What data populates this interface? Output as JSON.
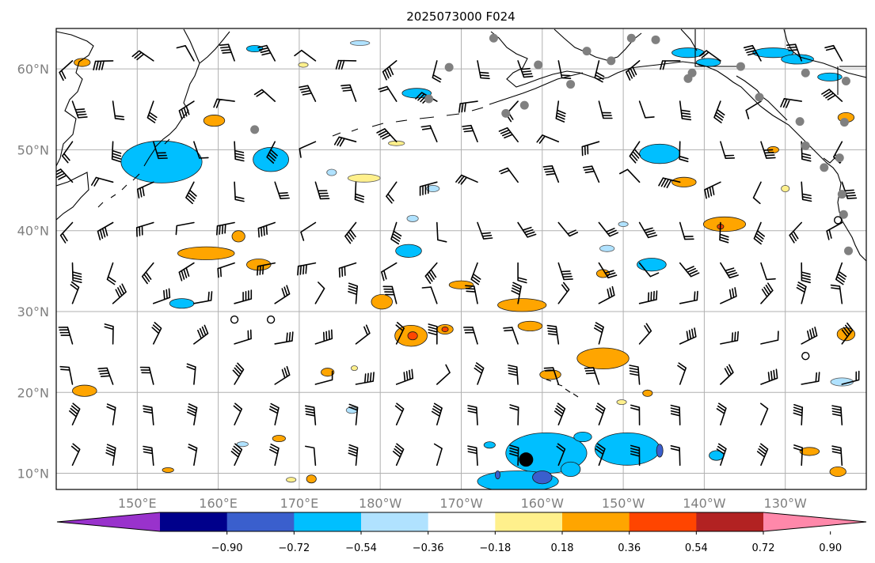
{
  "title": "2025073000 F024",
  "map": {
    "lon_min": 140,
    "lon_max": 240,
    "lat_min": 8,
    "lat_max": 65,
    "lon_ticks": [
      150,
      160,
      170,
      180,
      190,
      200,
      210,
      220,
      230
    ],
    "lat_ticks": [
      10,
      20,
      30,
      40,
      50,
      60
    ],
    "lon_labels": [
      "150°E",
      "160°E",
      "170°E",
      "180°W",
      "170°W",
      "160°W",
      "150°W",
      "140°W",
      "130°W"
    ],
    "lat_labels": [
      "10°N",
      "20°N",
      "30°N",
      "40°N",
      "50°N",
      "60°N"
    ],
    "grid": true
  },
  "colorbar": {
    "levels": [
      "−0.90",
      "−0.72",
      "−0.54",
      "−0.36",
      "−0.18",
      "0.18",
      "0.36",
      "0.54",
      "0.72",
      "0.90"
    ],
    "colors": [
      "#9932cc",
      "#00008b",
      "#3a5fcd",
      "#00bfff",
      "#b0e2ff",
      "#ffffff",
      "#fff08c",
      "#ffa500",
      "#ff4500",
      "#b22222",
      "#ff88aa"
    ],
    "extend": "both"
  },
  "colors": {
    "positive_1": "#fff08c",
    "positive_2": "#ffa500",
    "positive_3": "#ff4500",
    "negative_1": "#b0e2ff",
    "negative_2": "#00bfff",
    "negative_3": "#3a5fcd",
    "station": "#808080"
  },
  "anomalies": [
    {
      "lon": 153,
      "lat": 48.5,
      "rx": 5,
      "ry": 2.6,
      "level": -2
    },
    {
      "lon": 166.5,
      "lat": 48.8,
      "rx": 2.2,
      "ry": 1.5,
      "level": -2
    },
    {
      "lon": 214.5,
      "lat": 49.5,
      "rx": 2.5,
      "ry": 1.2,
      "level": -2
    },
    {
      "lon": 200.5,
      "lat": 12.5,
      "rx": 5,
      "ry": 2.5,
      "level": -2
    },
    {
      "lon": 210.5,
      "lat": 13,
      "rx": 4,
      "ry": 2,
      "level": -2
    },
    {
      "lon": 197,
      "lat": 9,
      "rx": 5,
      "ry": 1.3,
      "level": -2
    },
    {
      "lon": 203.5,
      "lat": 10.5,
      "rx": 1.2,
      "ry": 0.9,
      "level": -2
    },
    {
      "lon": 213.5,
      "lat": 35.8,
      "rx": 1.8,
      "ry": 0.8,
      "level": -2
    },
    {
      "lon": 228.5,
      "lat": 62,
      "rx": 2.5,
      "ry": 0.6,
      "level": -2
    },
    {
      "lon": 231.5,
      "lat": 61.2,
      "rx": 2,
      "ry": 0.6,
      "level": -2
    },
    {
      "lon": 235.5,
      "lat": 59,
      "rx": 1.5,
      "ry": 0.5,
      "level": -2
    },
    {
      "lon": 218,
      "lat": 62,
      "rx": 2,
      "ry": 0.6,
      "level": -2
    },
    {
      "lon": 220.5,
      "lat": 60.8,
      "rx": 1.5,
      "ry": 0.5,
      "level": -2
    },
    {
      "lon": 184.5,
      "lat": 57,
      "rx": 1.8,
      "ry": 0.6,
      "level": -2
    },
    {
      "lon": 183.5,
      "lat": 37.5,
      "rx": 1.6,
      "ry": 0.8,
      "level": -2
    },
    {
      "lon": 155.5,
      "lat": 31,
      "rx": 1.5,
      "ry": 0.6,
      "level": -2
    },
    {
      "lon": 164.5,
      "lat": 62.5,
      "rx": 1,
      "ry": 0.4,
      "level": -2
    },
    {
      "lon": 205,
      "lat": 14.5,
      "rx": 1.1,
      "ry": 0.6,
      "level": -2
    },
    {
      "lon": 221.5,
      "lat": 12.2,
      "rx": 0.9,
      "ry": 0.6,
      "level": -2
    },
    {
      "lon": 193.5,
      "lat": 13.5,
      "rx": 0.7,
      "ry": 0.4,
      "level": -2
    },
    {
      "lon": 208,
      "lat": 37.8,
      "rx": 0.9,
      "ry": 0.4,
      "level": -1
    },
    {
      "lon": 210,
      "lat": 40.8,
      "rx": 0.6,
      "ry": 0.3,
      "level": -1
    },
    {
      "lon": 184,
      "lat": 41.5,
      "rx": 0.7,
      "ry": 0.4,
      "level": -1
    },
    {
      "lon": 174,
      "lat": 47.2,
      "rx": 0.6,
      "ry": 0.4,
      "level": -1
    },
    {
      "lon": 176.5,
      "lat": 17.8,
      "rx": 0.7,
      "ry": 0.4,
      "level": -1
    },
    {
      "lon": 163,
      "lat": 13.6,
      "rx": 0.7,
      "ry": 0.3,
      "level": -1
    },
    {
      "lon": 237,
      "lat": 21.3,
      "rx": 1.4,
      "ry": 0.5,
      "level": -1
    },
    {
      "lon": 186.5,
      "lat": 45.2,
      "rx": 0.8,
      "ry": 0.4,
      "level": -1
    },
    {
      "lon": 177.5,
      "lat": 63.2,
      "rx": 1.2,
      "ry": 0.3,
      "level": -1
    },
    {
      "lon": 198.5,
      "lat": 28.2,
      "rx": 1.5,
      "ry": 0.6,
      "level": 2
    },
    {
      "lon": 197.5,
      "lat": 30.8,
      "rx": 3,
      "ry": 0.8,
      "level": 2
    },
    {
      "lon": 190,
      "lat": 33.3,
      "rx": 1.5,
      "ry": 0.5,
      "level": 2
    },
    {
      "lon": 207.5,
      "lat": 24.2,
      "rx": 3.2,
      "ry": 1.3,
      "level": 2
    },
    {
      "lon": 201,
      "lat": 22.2,
      "rx": 1.3,
      "ry": 0.6,
      "level": 2
    },
    {
      "lon": 222.5,
      "lat": 40.8,
      "rx": 2.6,
      "ry": 0.9,
      "level": 2
    },
    {
      "lon": 217.5,
      "lat": 46,
      "rx": 1.5,
      "ry": 0.6,
      "level": 2
    },
    {
      "lon": 158.5,
      "lat": 37.2,
      "rx": 3.5,
      "ry": 0.8,
      "level": 2
    },
    {
      "lon": 165,
      "lat": 35.8,
      "rx": 1.5,
      "ry": 0.7,
      "level": 2
    },
    {
      "lon": 162.5,
      "lat": 39.3,
      "rx": 0.8,
      "ry": 0.7,
      "level": 2
    },
    {
      "lon": 180.2,
      "lat": 31.2,
      "rx": 1.3,
      "ry": 0.9,
      "level": 2
    },
    {
      "lon": 183.8,
      "lat": 27,
      "rx": 2,
      "ry": 1.3,
      "level": 2
    },
    {
      "lon": 188,
      "lat": 27.8,
      "rx": 1,
      "ry": 0.6,
      "level": 2
    },
    {
      "lon": 159.5,
      "lat": 53.6,
      "rx": 1.3,
      "ry": 0.7,
      "level": 2
    },
    {
      "lon": 143.5,
      "lat": 20.2,
      "rx": 1.5,
      "ry": 0.7,
      "level": 2
    },
    {
      "lon": 173.5,
      "lat": 22.5,
      "rx": 0.8,
      "ry": 0.5,
      "level": 2
    },
    {
      "lon": 207.5,
      "lat": 34.7,
      "rx": 0.8,
      "ry": 0.5,
      "level": 2
    },
    {
      "lon": 237.5,
      "lat": 27.2,
      "rx": 1.1,
      "ry": 0.8,
      "level": 2
    },
    {
      "lon": 237.5,
      "lat": 54,
      "rx": 1,
      "ry": 0.6,
      "level": 2
    },
    {
      "lon": 143.2,
      "lat": 60.8,
      "rx": 1,
      "ry": 0.5,
      "level": 2
    },
    {
      "lon": 228.5,
      "lat": 50,
      "rx": 0.7,
      "ry": 0.4,
      "level": 2
    },
    {
      "lon": 236.5,
      "lat": 10.2,
      "rx": 1,
      "ry": 0.6,
      "level": 2
    },
    {
      "lon": 167.5,
      "lat": 14.3,
      "rx": 0.8,
      "ry": 0.4,
      "level": 2
    },
    {
      "lon": 171.5,
      "lat": 9.3,
      "rx": 0.6,
      "ry": 0.5,
      "level": 2
    },
    {
      "lon": 153.8,
      "lat": 10.4,
      "rx": 0.7,
      "ry": 0.3,
      "level": 2
    },
    {
      "lon": 213,
      "lat": 19.9,
      "rx": 0.6,
      "ry": 0.4,
      "level": 2
    },
    {
      "lon": 233,
      "lat": 12.7,
      "rx": 1.2,
      "ry": 0.5,
      "level": 2
    },
    {
      "lon": 178,
      "lat": 46.5,
      "rx": 2,
      "ry": 0.5,
      "level": 1
    },
    {
      "lon": 182,
      "lat": 50.8,
      "rx": 1,
      "ry": 0.3,
      "level": 1
    },
    {
      "lon": 170.5,
      "lat": 60.5,
      "rx": 0.6,
      "ry": 0.3,
      "level": 1
    },
    {
      "lon": 209.8,
      "lat": 18.8,
      "rx": 0.6,
      "ry": 0.3,
      "level": 1
    },
    {
      "lon": 230,
      "lat": 45.2,
      "rx": 0.5,
      "ry": 0.4,
      "level": 1
    },
    {
      "lon": 169,
      "lat": 9.2,
      "rx": 0.6,
      "ry": 0.3,
      "level": 1
    },
    {
      "lon": 176.8,
      "lat": 23,
      "rx": 0.4,
      "ry": 0.3,
      "level": 1
    },
    {
      "lon": 184,
      "lat": 27,
      "rx": 0.6,
      "ry": 0.5,
      "level": 3
    },
    {
      "lon": 188,
      "lat": 27.8,
      "rx": 0.4,
      "ry": 0.3,
      "level": 3
    },
    {
      "lon": 222,
      "lat": 40.5,
      "rx": 0.4,
      "ry": 0.3,
      "level": 3
    },
    {
      "lon": 200,
      "lat": 9.5,
      "rx": 1.2,
      "ry": 0.8,
      "level": -3
    },
    {
      "lon": 214.5,
      "lat": 12.8,
      "rx": 0.4,
      "ry": 0.8,
      "level": -3
    },
    {
      "lon": 194.5,
      "lat": 9.8,
      "rx": 0.3,
      "ry": 0.5,
      "level": -3
    }
  ],
  "stations": [
    {
      "lon": 186,
      "lat": 56.3
    },
    {
      "lon": 188.5,
      "lat": 60.2
    },
    {
      "lon": 194,
      "lat": 63.8
    },
    {
      "lon": 199.5,
      "lat": 60.5
    },
    {
      "lon": 195.5,
      "lat": 54.5
    },
    {
      "lon": 197.8,
      "lat": 55.5
    },
    {
      "lon": 203.5,
      "lat": 58.1
    },
    {
      "lon": 205.5,
      "lat": 62.2
    },
    {
      "lon": 208.5,
      "lat": 61
    },
    {
      "lon": 211,
      "lat": 63.8
    },
    {
      "lon": 214,
      "lat": 63.6
    },
    {
      "lon": 218,
      "lat": 58.8
    },
    {
      "lon": 218.5,
      "lat": 59.5
    },
    {
      "lon": 224.5,
      "lat": 60.3
    },
    {
      "lon": 226.8,
      "lat": 56.5
    },
    {
      "lon": 232.5,
      "lat": 59.5
    },
    {
      "lon": 237.5,
      "lat": 58.5
    },
    {
      "lon": 237.3,
      "lat": 53.4
    },
    {
      "lon": 231.8,
      "lat": 53.5
    },
    {
      "lon": 232.5,
      "lat": 50.5
    },
    {
      "lon": 234.8,
      "lat": 47.8
    },
    {
      "lon": 236.7,
      "lat": 49
    },
    {
      "lon": 237,
      "lat": 44.5
    },
    {
      "lon": 237.2,
      "lat": 42
    },
    {
      "lon": 237.8,
      "lat": 37.5
    },
    {
      "lon": 164.5,
      "lat": 52.5
    }
  ],
  "open_markers": [
    {
      "lon": 162,
      "lat": 29
    },
    {
      "lon": 166.5,
      "lat": 29
    },
    {
      "lon": 232.5,
      "lat": 24.5
    },
    {
      "lon": 236.5,
      "lat": 41.3
    }
  ],
  "big_marker": {
    "lon": 198,
    "lat": 11.7
  }
}
